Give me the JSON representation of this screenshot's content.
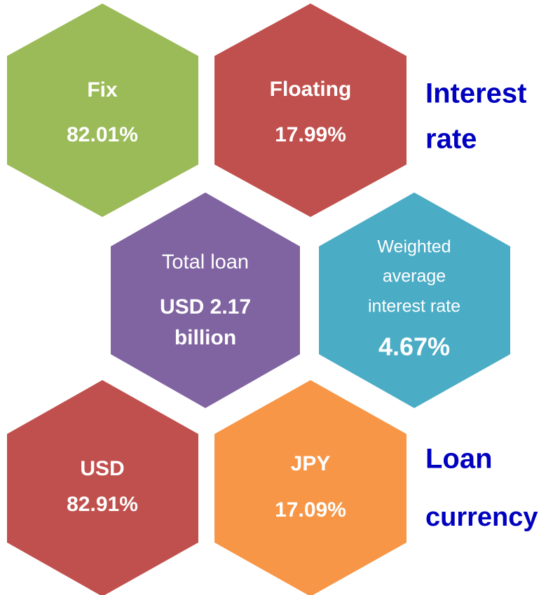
{
  "hexagons": [
    {
      "label": "Fix",
      "value": "82.01%"
    },
    {
      "label": "Floating",
      "value": "17.99%"
    },
    {
      "label": "Total loan",
      "value_lines": [
        "USD 2.17",
        "billion"
      ]
    },
    {
      "label_lines": [
        "Weighted",
        "average",
        "interest rate"
      ],
      "value": "4.67%"
    },
    {
      "label": "USD",
      "value": "82.91%"
    },
    {
      "label": "JPY",
      "value": "17.09%"
    }
  ],
  "side_labels": [
    {
      "lines": [
        "Interest",
        "rate"
      ]
    },
    {
      "lines": [
        "Loan",
        "currency"
      ]
    }
  ]
}
